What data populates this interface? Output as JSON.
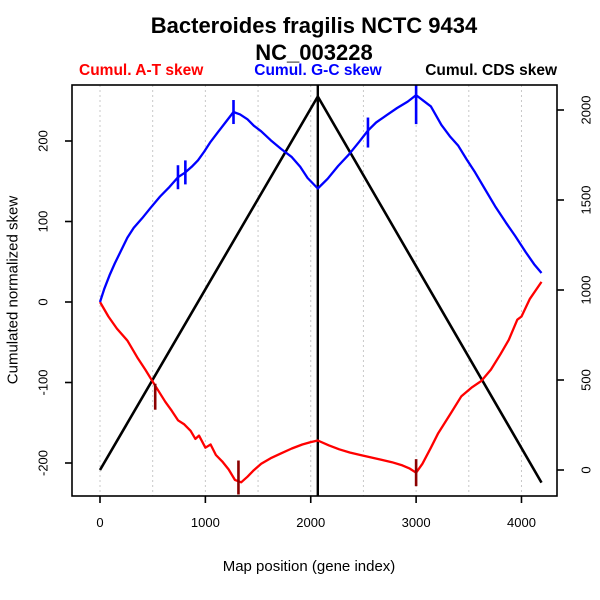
{
  "chart": {
    "title_line1": "Bacteroides fragilis NCTC 9434",
    "title_line2": "NC_003228",
    "xlabel": "Map position (gene index)",
    "ylabel_left": "Cumulated normalized skew",
    "legend": [
      {
        "label": "Cumul. A-T skew",
        "color": "#ff0000"
      },
      {
        "label": "Cumul. G-C skew",
        "color": "#0000ff"
      },
      {
        "label": "Cumul. CDS skew",
        "color": "#000000"
      }
    ]
  },
  "chart_data": {
    "type": "line",
    "title": "Bacteroides fragilis NCTC 9434",
    "subtitle": "NC_003228",
    "xlabel": "Map position (gene index)",
    "ylabel": "Cumulated normalized skew",
    "x_ticks": [
      0,
      1000,
      2000,
      3000,
      4000
    ],
    "x_gridlines": [
      0,
      500,
      1000,
      1500,
      2000,
      2500,
      3000,
      3500,
      4000
    ],
    "xlim": [
      -266,
      4337
    ],
    "left_ticks": [
      -200,
      -100,
      0,
      100,
      200
    ],
    "left_lim": [
      -241,
      270
    ],
    "right_ticks": [
      0,
      500,
      1000,
      1500,
      2000
    ],
    "right_lim": [
      -144,
      2139
    ],
    "grid_color": "#c8c8c8",
    "grid_style": "dashed",
    "legend_position": "top",
    "vline": {
      "x": 2067,
      "color": "#000000"
    },
    "series": [
      {
        "name": "Cumul. CDS skew",
        "color": "#000000",
        "axis": "right",
        "width": 2.6,
        "points": [
          [
            0,
            0
          ],
          [
            2067,
            2075
          ],
          [
            4190,
            -70
          ]
        ]
      },
      {
        "name": "Cumul. A-T skew",
        "color": "#ff0000",
        "axis": "left",
        "width": 2.3,
        "points": [
          [
            0,
            0
          ],
          [
            80,
            -18
          ],
          [
            160,
            -33
          ],
          [
            260,
            -48
          ],
          [
            360,
            -70
          ],
          [
            430,
            -84
          ],
          [
            524,
            -104
          ],
          [
            620,
            -124
          ],
          [
            680,
            -135
          ],
          [
            740,
            -147
          ],
          [
            800,
            -152
          ],
          [
            860,
            -160
          ],
          [
            905,
            -170
          ],
          [
            940,
            -166
          ],
          [
            1000,
            -181
          ],
          [
            1050,
            -177
          ],
          [
            1100,
            -190
          ],
          [
            1160,
            -198
          ],
          [
            1220,
            -208
          ],
          [
            1280,
            -221
          ],
          [
            1340,
            -224
          ],
          [
            1400,
            -217
          ],
          [
            1460,
            -209
          ],
          [
            1530,
            -201
          ],
          [
            1620,
            -194
          ],
          [
            1720,
            -188
          ],
          [
            1820,
            -182
          ],
          [
            1920,
            -177
          ],
          [
            2000,
            -174
          ],
          [
            2067,
            -172
          ],
          [
            2170,
            -178
          ],
          [
            2270,
            -183
          ],
          [
            2370,
            -187
          ],
          [
            2470,
            -190
          ],
          [
            2570,
            -193
          ],
          [
            2670,
            -196
          ],
          [
            2770,
            -199
          ],
          [
            2870,
            -203
          ],
          [
            2940,
            -207
          ],
          [
            3000,
            -212
          ],
          [
            3060,
            -201
          ],
          [
            3140,
            -181
          ],
          [
            3210,
            -163
          ],
          [
            3330,
            -138
          ],
          [
            3430,
            -117
          ],
          [
            3530,
            -106
          ],
          [
            3620,
            -98
          ],
          [
            3710,
            -84
          ],
          [
            3800,
            -65
          ],
          [
            3880,
            -47
          ],
          [
            3960,
            -22
          ],
          [
            4000,
            -18
          ],
          [
            4080,
            4
          ],
          [
            4190,
            25
          ]
        ]
      },
      {
        "name": "Cumul. G-C skew",
        "color": "#0000ff",
        "axis": "left",
        "width": 2.3,
        "points": [
          [
            0,
            0
          ],
          [
            40,
            16
          ],
          [
            90,
            33
          ],
          [
            140,
            48
          ],
          [
            200,
            64
          ],
          [
            260,
            80
          ],
          [
            320,
            92
          ],
          [
            400,
            104
          ],
          [
            480,
            117
          ],
          [
            570,
            131
          ],
          [
            660,
            143
          ],
          [
            740,
            155
          ],
          [
            810,
            161
          ],
          [
            870,
            168
          ],
          [
            930,
            176
          ],
          [
            990,
            187
          ],
          [
            1050,
            199
          ],
          [
            1120,
            211
          ],
          [
            1190,
            223
          ],
          [
            1267,
            236
          ],
          [
            1330,
            233
          ],
          [
            1400,
            227
          ],
          [
            1460,
            219
          ],
          [
            1530,
            212
          ],
          [
            1620,
            201
          ],
          [
            1720,
            190
          ],
          [
            1820,
            180
          ],
          [
            1900,
            168
          ],
          [
            1970,
            154
          ],
          [
            2067,
            141
          ],
          [
            2160,
            153
          ],
          [
            2260,
            169
          ],
          [
            2360,
            183
          ],
          [
            2460,
            199
          ],
          [
            2543,
            213
          ],
          [
            2620,
            223
          ],
          [
            2720,
            232
          ],
          [
            2820,
            241
          ],
          [
            2920,
            249
          ],
          [
            3000,
            257
          ],
          [
            3070,
            250
          ],
          [
            3140,
            243
          ],
          [
            3240,
            220
          ],
          [
            3320,
            206
          ],
          [
            3400,
            194
          ],
          [
            3480,
            177
          ],
          [
            3560,
            161
          ],
          [
            3650,
            141
          ],
          [
            3750,
            119
          ],
          [
            3850,
            99
          ],
          [
            3940,
            82
          ],
          [
            4040,
            62
          ],
          [
            4120,
            47
          ],
          [
            4190,
            36
          ]
        ]
      }
    ],
    "markers": [
      {
        "x": 740,
        "v": 155,
        "color": "#0000ff",
        "len": 24,
        "offset": 0
      },
      {
        "x": 810,
        "v": 161,
        "color": "#0000ff",
        "len": 24,
        "offset": 0
      },
      {
        "x": 1267,
        "v": 236,
        "color": "#0000ff",
        "len": 24,
        "offset": 0
      },
      {
        "x": 2543,
        "v": 213,
        "color": "#0000ff",
        "len": 30,
        "offset": 2
      },
      {
        "x": 3000,
        "v": 257,
        "color": "#0000ff",
        "len": 40,
        "offset": 9
      },
      {
        "x": 524,
        "v": -104,
        "color": "#8b0000",
        "len": 26,
        "offset": 11
      },
      {
        "x": 1314,
        "v": -223,
        "color": "#8b0000",
        "len": 34,
        "offset": -4
      },
      {
        "x": 3000,
        "v": -212,
        "color": "#8b0000",
        "len": 27,
        "offset": 0
      }
    ]
  }
}
